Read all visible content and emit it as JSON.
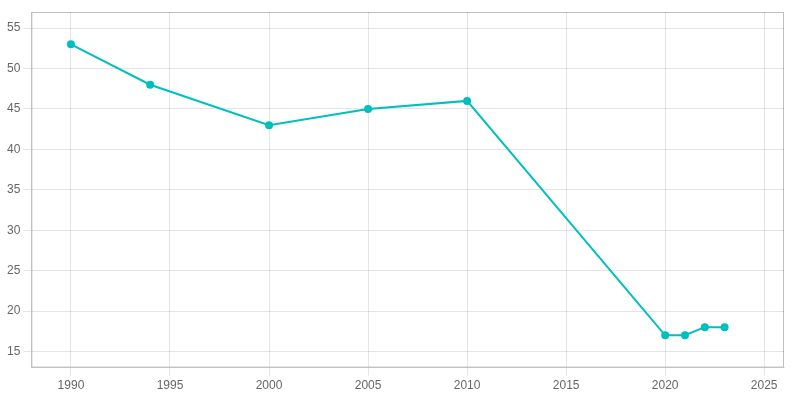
{
  "chart_data": {
    "type": "line",
    "x": [
      1990,
      1994,
      2000,
      2005,
      2010,
      2020,
      2021,
      2022,
      2023
    ],
    "values": [
      53,
      48,
      43,
      45,
      46,
      17,
      17,
      18,
      18
    ],
    "color": "#00BFBF",
    "marker": "circle",
    "xlim": [
      1988,
      2026
    ],
    "ylim": [
      13,
      57
    ],
    "xticks": [
      1990,
      1995,
      2000,
      2005,
      2010,
      2015,
      2020,
      2025
    ],
    "yticks": [
      15,
      20,
      25,
      30,
      35,
      40,
      45,
      50,
      55
    ],
    "grid": true
  }
}
